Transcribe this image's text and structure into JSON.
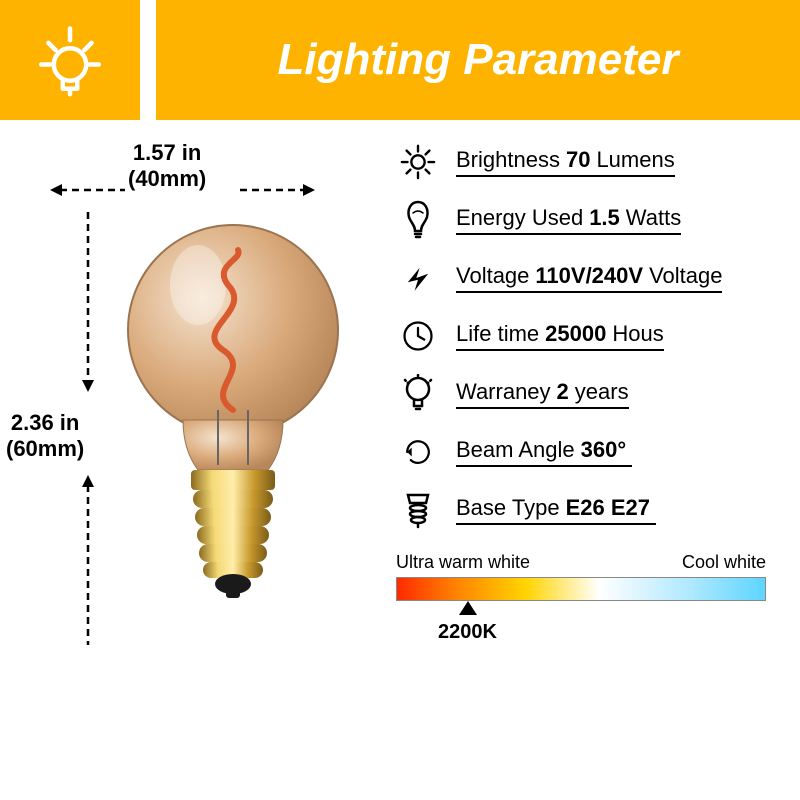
{
  "header": {
    "title": "Lighting Parameter",
    "accent_color": "#feb301",
    "title_color": "#ffffff"
  },
  "dimensions": {
    "width_in": "1.57 in",
    "width_mm": "(40mm)",
    "height_in": "2.36 in",
    "height_mm": "(60mm)"
  },
  "specs": [
    {
      "icon": "sun",
      "label": "Brightness",
      "value": "70",
      "unit": "Lumens"
    },
    {
      "icon": "bulb",
      "label": "Energy Used",
      "value": "1.5",
      "unit": "Watts"
    },
    {
      "icon": "bolt",
      "label": "Voltage",
      "value": "110V/240V",
      "unit": "Voltage"
    },
    {
      "icon": "clock",
      "label": "Life time",
      "value": "25000",
      "unit": "Hous"
    },
    {
      "icon": "bulb-outline",
      "label": "Warraney",
      "value": "2",
      "unit": "years"
    },
    {
      "icon": "rotate",
      "label": "Beam Angle",
      "value": "360°",
      "unit": ""
    },
    {
      "icon": "base",
      "label": "Base Type",
      "value": "E26 E27",
      "unit": ""
    }
  ],
  "color_temp": {
    "left_label": "Ultra warm white",
    "right_label": "Cool white",
    "marker_value": "2200K",
    "marker_position_pct": 18,
    "gradient_stops": [
      "#ff2a00",
      "#ff7e00",
      "#ffd400",
      "#ffffff",
      "#aee8ff",
      "#5dd5ff"
    ]
  },
  "bulb_colors": {
    "glass": "#d9a97a",
    "filament": "#d85a2e",
    "base_gold1": "#f5d976",
    "base_gold2": "#c99a2e"
  }
}
